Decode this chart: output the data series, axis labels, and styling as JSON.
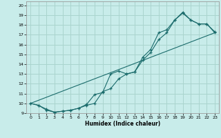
{
  "xlabel": "Humidex (Indice chaleur)",
  "bg_color": "#c8ecea",
  "line_color": "#1a6b6b",
  "grid_color": "#aad4ce",
  "xlim": [
    -0.5,
    23.5
  ],
  "ylim": [
    9.0,
    20.4
  ],
  "yticks": [
    9,
    10,
    11,
    12,
    13,
    14,
    15,
    16,
    17,
    18,
    19,
    20
  ],
  "xticks": [
    0,
    1,
    2,
    3,
    4,
    5,
    6,
    7,
    8,
    9,
    10,
    11,
    12,
    13,
    14,
    15,
    16,
    17,
    18,
    19,
    20,
    21,
    22,
    23
  ],
  "line1_x": [
    0,
    1,
    2,
    3,
    4,
    5,
    6,
    7,
    8,
    9,
    10,
    11,
    12,
    13,
    14,
    15,
    16,
    17,
    18,
    19,
    20,
    21,
    22,
    23
  ],
  "line1_y": [
    10.0,
    9.8,
    9.4,
    9.1,
    9.2,
    9.3,
    9.5,
    9.9,
    10.9,
    11.1,
    13.0,
    13.3,
    13.0,
    13.2,
    14.7,
    15.5,
    17.2,
    17.5,
    18.5,
    19.2,
    18.5,
    18.1,
    18.1,
    17.2
  ],
  "line2_x": [
    0,
    1,
    2,
    3,
    4,
    5,
    6,
    7,
    8,
    9,
    10,
    11,
    12,
    13,
    14,
    15,
    16,
    17,
    18,
    19,
    20,
    21,
    22,
    23
  ],
  "line2_y": [
    10.0,
    9.8,
    9.3,
    9.1,
    9.2,
    9.3,
    9.5,
    9.8,
    10.0,
    11.2,
    11.5,
    12.5,
    13.0,
    13.2,
    14.4,
    15.2,
    16.5,
    17.2,
    18.5,
    19.3,
    18.5,
    18.1,
    18.1,
    17.3
  ],
  "line3_x": [
    0,
    23
  ],
  "line3_y": [
    10.0,
    17.2
  ]
}
